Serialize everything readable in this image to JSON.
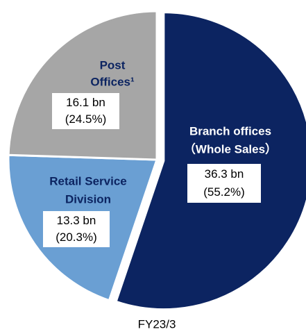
{
  "chart_data": {
    "type": "pie",
    "title": "FY23/3",
    "categories": [
      [
        "Branch offices",
        "（Whole Sales）"
      ],
      [
        "Retail Service",
        "Division"
      ],
      [
        "Post",
        "Offices¹"
      ]
    ],
    "values": [
      55.2,
      20.3,
      24.5
    ],
    "value_labels": [
      "(55.2%)",
      "(20.3%)",
      "(24.5%)"
    ],
    "amounts": [
      "36.3 bn",
      "13.3 bn",
      "16.1 bn"
    ],
    "colors": [
      "#0c2461",
      "#6a9fd3",
      "#a6a6a6"
    ]
  }
}
